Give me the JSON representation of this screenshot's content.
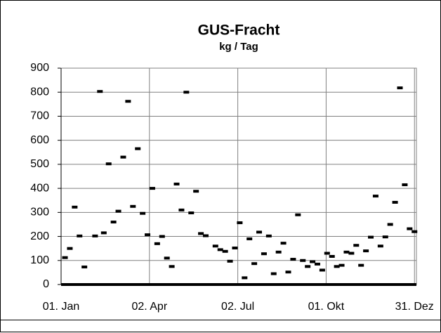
{
  "chart_data": {
    "type": "scatter",
    "title": "GUS-Fracht",
    "subtitle": "kg / Tag",
    "x": [
      5,
      10,
      15,
      20,
      25,
      36,
      41,
      45,
      50,
      55,
      60,
      65,
      70,
      75,
      80,
      85,
      90,
      95,
      100,
      105,
      110,
      115,
      120,
      125,
      130,
      135,
      140,
      145,
      150,
      160,
      165,
      170,
      175,
      180,
      185,
      190,
      195,
      200,
      205,
      210,
      215,
      220,
      225,
      230,
      235,
      240,
      245,
      250,
      255,
      260,
      265,
      270,
      275,
      280,
      285,
      290,
      295,
      300,
      305,
      310,
      315,
      320,
      325,
      330,
      335,
      340,
      345,
      350,
      355,
      360,
      365
    ],
    "values": [
      112,
      150,
      322,
      202,
      73,
      202,
      803,
      215,
      502,
      260,
      305,
      530,
      762,
      325,
      565,
      296,
      207,
      400,
      170,
      200,
      110,
      75,
      418,
      310,
      800,
      298,
      388,
      212,
      203,
      160,
      145,
      138,
      97,
      152,
      257,
      28,
      190,
      87,
      218,
      128,
      202,
      45,
      135,
      172,
      52,
      105,
      290,
      100,
      75,
      95,
      85,
      60,
      130,
      117,
      75,
      80,
      135,
      130,
      163,
      80,
      140,
      197,
      368,
      160,
      198,
      250,
      342,
      818,
      415,
      232,
      220
    ],
    "color": "#000000",
    "xlim": [
      1,
      367
    ],
    "xticks": [
      {
        "value": 1,
        "label": "01. Jan"
      },
      {
        "value": 92,
        "label": "02. Apr"
      },
      {
        "value": 183,
        "label": "02. Jul"
      },
      {
        "value": 274,
        "label": "01. Okt"
      },
      {
        "value": 365,
        "label": "31. Dez"
      }
    ],
    "ylim": [
      0,
      900
    ],
    "yticks": [
      0,
      100,
      200,
      300,
      400,
      500,
      600,
      700,
      800,
      900
    ],
    "grid": true
  }
}
